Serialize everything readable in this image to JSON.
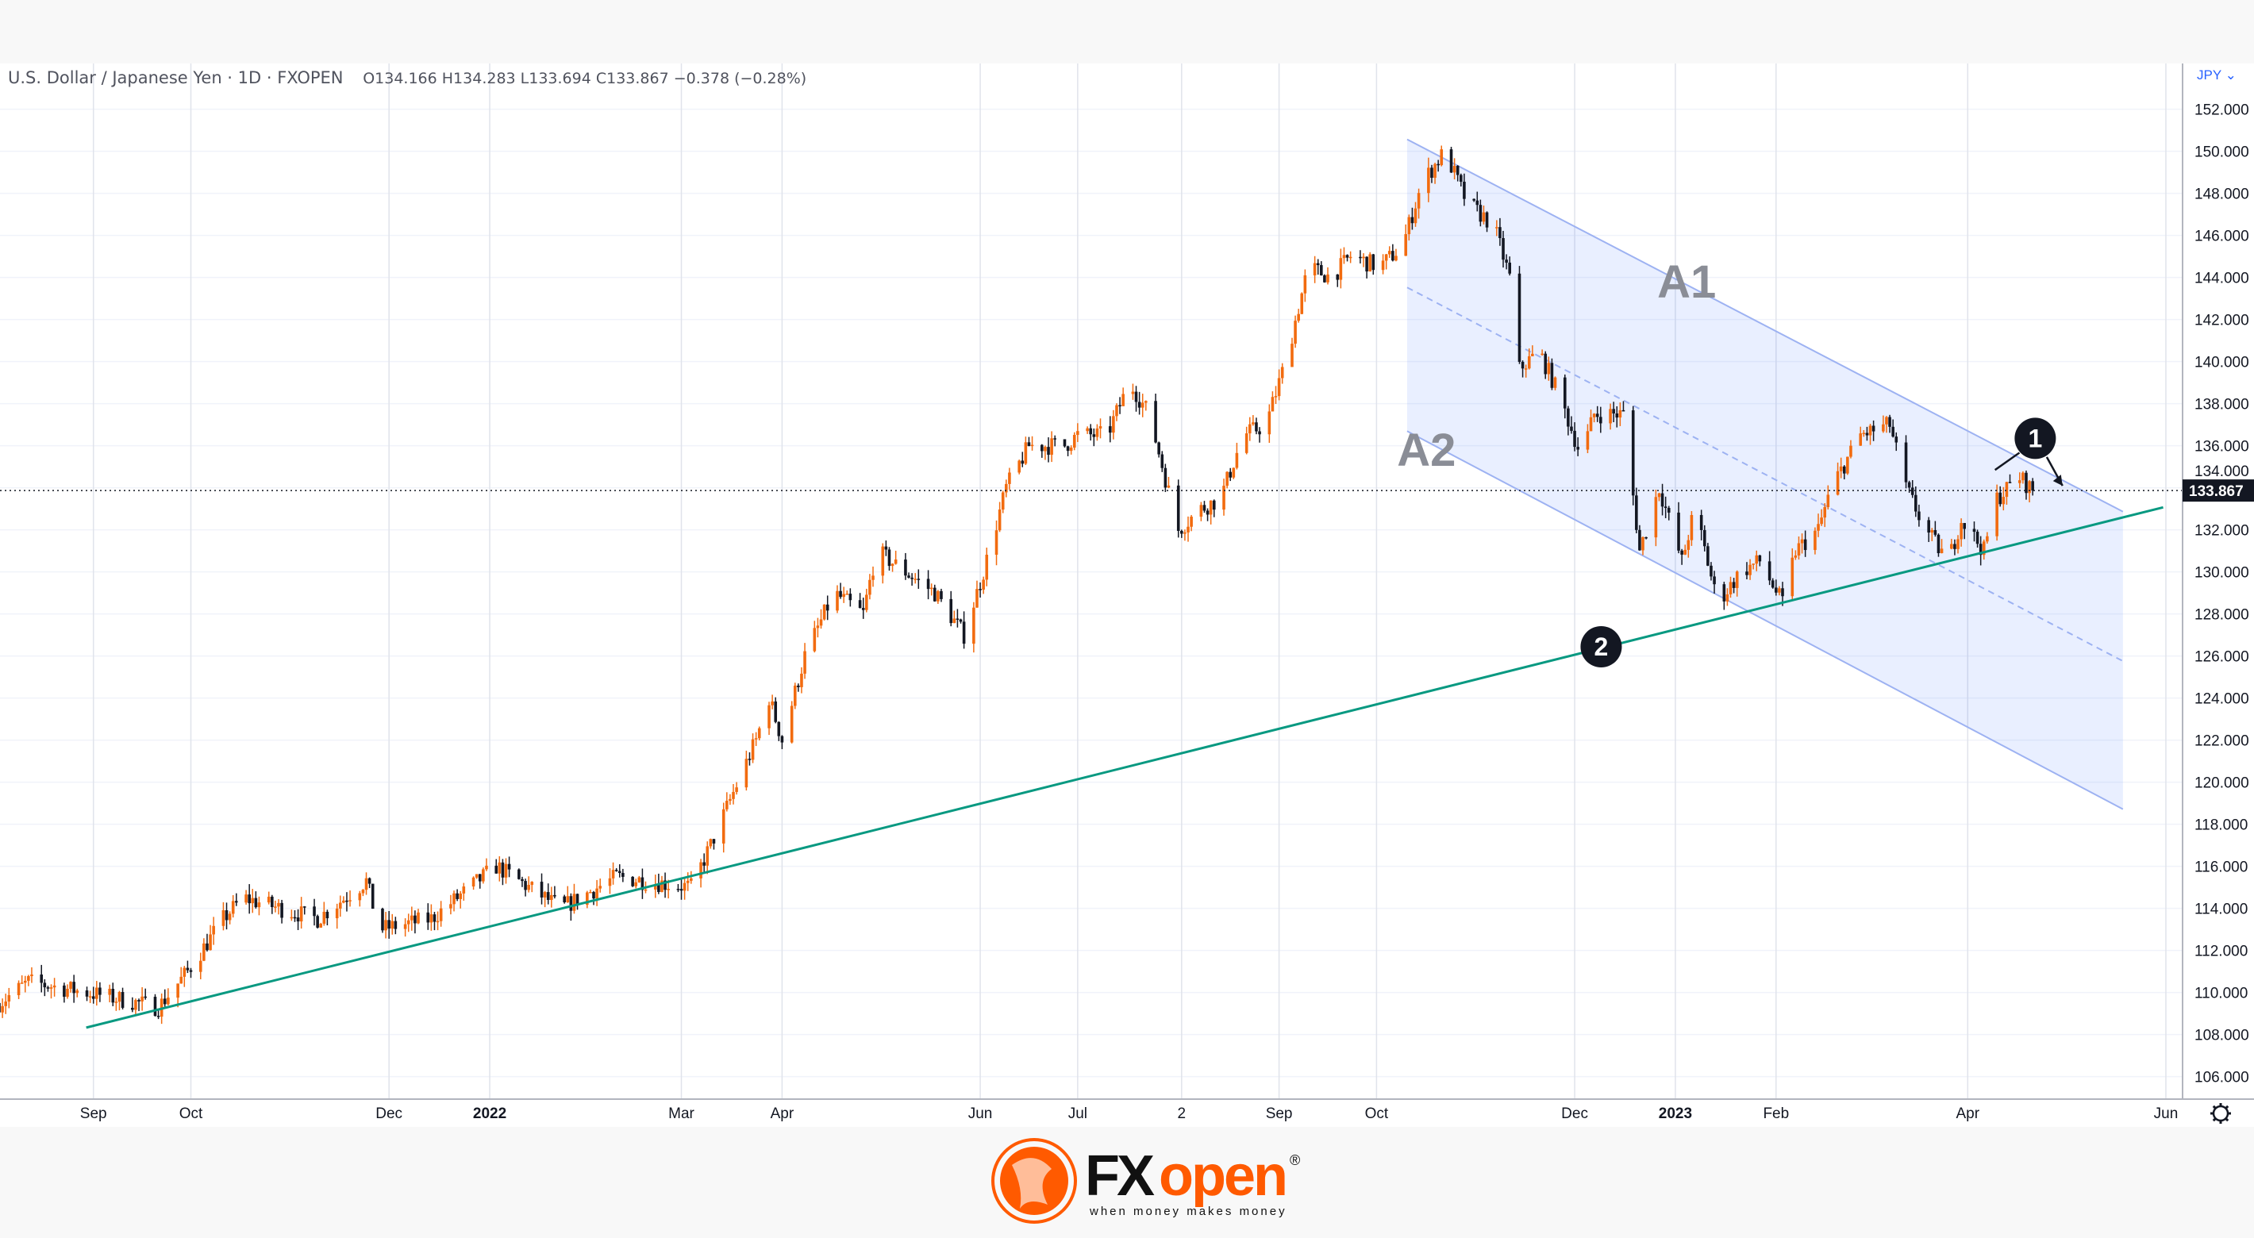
{
  "header": {
    "symbol": "U.S. Dollar / Japanese Yen · 1D · FXOPEN",
    "ohlc": "O134.166 H134.283 L133.694 C133.867 −0.378 (−0.28%)"
  },
  "price_axis": {
    "currency": "JPY ⌄",
    "last_price": "133.867"
  },
  "colors": {
    "up": "#f26b0f",
    "down": "#131722",
    "channel": "#2962ff",
    "trendline": "#089981",
    "brand": "#ff5a00"
  },
  "icons": {
    "settings": "gear-icon"
  },
  "logo": {
    "name": "FXopen",
    "tagline": "when money makes money"
  },
  "chart_data": {
    "type": "candlestick",
    "title": "",
    "ylim": [
      105,
      153
    ],
    "y_ticks": [
      "152.000",
      "150.000",
      "148.000",
      "146.000",
      "144.000",
      "142.000",
      "140.000",
      "138.000",
      "136.000",
      "134.000",
      "132.000",
      "130.000",
      "128.000",
      "126.000",
      "124.000",
      "122.000",
      "120.000",
      "118.000",
      "116.000",
      "114.000",
      "112.000",
      "110.000",
      "108.000",
      "106.000"
    ],
    "x_ticks": [
      {
        "label": "Sep",
        "date": "2021-09-01"
      },
      {
        "label": "Oct",
        "date": "2021-10-01"
      },
      {
        "label": "Dec",
        "date": "2021-12-01"
      },
      {
        "label": "2022",
        "date": "2022-01-01"
      },
      {
        "label": "Mar",
        "date": "2022-03-01"
      },
      {
        "label": "Apr",
        "date": "2022-04-01"
      },
      {
        "label": "Jun",
        "date": "2022-06-01"
      },
      {
        "label": "Jul",
        "date": "2022-07-01"
      },
      {
        "label": "2",
        "date": "2022-08-02"
      },
      {
        "label": "Sep",
        "date": "2022-09-01"
      },
      {
        "label": "Oct",
        "date": "2022-10-01"
      },
      {
        "label": "Dec",
        "date": "2022-12-01"
      },
      {
        "label": "2023",
        "date": "2023-01-01"
      },
      {
        "label": "Feb",
        "date": "2023-02-01"
      },
      {
        "label": "Apr",
        "date": "2023-04-01"
      },
      {
        "label": "Jun",
        "date": "2023-06-01"
      }
    ],
    "close_keypoints": [
      [
        "2021-08-03",
        109.5
      ],
      [
        "2021-08-12",
        110.5
      ],
      [
        "2021-08-30",
        110.0
      ],
      [
        "2021-09-21",
        109.3
      ],
      [
        "2021-09-30",
        111.0
      ],
      [
        "2021-10-11",
        113.5
      ],
      [
        "2021-10-17",
        114.5
      ],
      [
        "2021-11-09",
        113.5
      ],
      [
        "2021-11-24",
        115.3
      ],
      [
        "2021-11-28",
        113.0
      ],
      [
        "2021-12-14",
        113.5
      ],
      [
        "2022-01-03",
        116.0
      ],
      [
        "2022-01-23",
        114.0
      ],
      [
        "2022-02-09",
        115.5
      ],
      [
        "2022-03-04",
        115.0
      ],
      [
        "2022-03-10",
        117.0
      ],
      [
        "2022-03-17",
        119.5
      ],
      [
        "2022-03-24",
        122.0
      ],
      [
        "2022-03-28",
        124.0
      ],
      [
        "2022-04-01",
        122.0
      ],
      [
        "2022-04-08",
        126.0
      ],
      [
        "2022-04-17",
        129.0
      ],
      [
        "2022-04-26",
        128.0
      ],
      [
        "2022-04-30",
        131.0
      ],
      [
        "2022-05-09",
        130.0
      ],
      [
        "2022-05-18",
        129.0
      ],
      [
        "2022-05-27",
        127.0
      ],
      [
        "2022-06-02",
        130.0
      ],
      [
        "2022-06-09",
        134.0
      ],
      [
        "2022-06-16",
        136.0
      ],
      [
        "2022-06-27",
        136.0
      ],
      [
        "2022-07-01",
        136.5
      ],
      [
        "2022-07-10",
        136.5
      ],
      [
        "2022-07-17",
        139.0
      ],
      [
        "2022-07-23",
        137.5
      ],
      [
        "2022-08-01",
        132.0
      ],
      [
        "2022-08-08",
        133.0
      ],
      [
        "2022-08-14",
        133.5
      ],
      [
        "2022-08-21",
        136.5
      ],
      [
        "2022-08-28",
        137.0
      ],
      [
        "2022-09-03",
        140.0
      ],
      [
        "2022-09-10",
        144.5
      ],
      [
        "2022-09-17",
        144.0
      ],
      [
        "2022-09-23",
        145.0
      ],
      [
        "2022-10-02",
        144.5
      ],
      [
        "2022-10-09",
        145.5
      ],
      [
        "2022-10-15",
        148.5
      ],
      [
        "2022-10-22",
        150.0
      ],
      [
        "2022-10-29",
        147.5
      ],
      [
        "2022-11-06",
        146.5
      ],
      [
        "2022-11-11",
        144.0
      ],
      [
        "2022-11-13",
        139.5
      ],
      [
        "2022-11-20",
        140.5
      ],
      [
        "2022-11-26",
        138.5
      ],
      [
        "2022-12-03",
        135.5
      ],
      [
        "2022-12-07",
        137.5
      ],
      [
        "2022-12-16",
        137.5
      ],
      [
        "2022-12-21",
        131.0
      ],
      [
        "2022-12-27",
        134.0
      ],
      [
        "2023-01-03",
        130.5
      ],
      [
        "2023-01-07",
        133.0
      ],
      [
        "2023-01-14",
        128.5
      ],
      [
        "2023-01-21",
        130.0
      ],
      [
        "2023-01-27",
        130.5
      ],
      [
        "2023-02-03",
        128.5
      ],
      [
        "2023-02-07",
        131.0
      ],
      [
        "2023-02-14",
        132.0
      ],
      [
        "2023-02-18",
        134.0
      ],
      [
        "2023-02-27",
        136.5
      ],
      [
        "2023-03-08",
        137.0
      ],
      [
        "2023-03-13",
        134.0
      ],
      [
        "2023-03-19",
        132.0
      ],
      [
        "2023-03-26",
        130.5
      ],
      [
        "2023-03-30",
        132.5
      ],
      [
        "2023-04-06",
        131.0
      ],
      [
        "2023-04-10",
        133.5
      ],
      [
        "2023-04-17",
        134.5
      ],
      [
        "2023-04-21",
        133.867
      ]
    ],
    "annotations": {
      "channel_upper_label": "A1",
      "channel_lower_label": "A2",
      "marker_1": "1",
      "marker_2": "2"
    }
  }
}
